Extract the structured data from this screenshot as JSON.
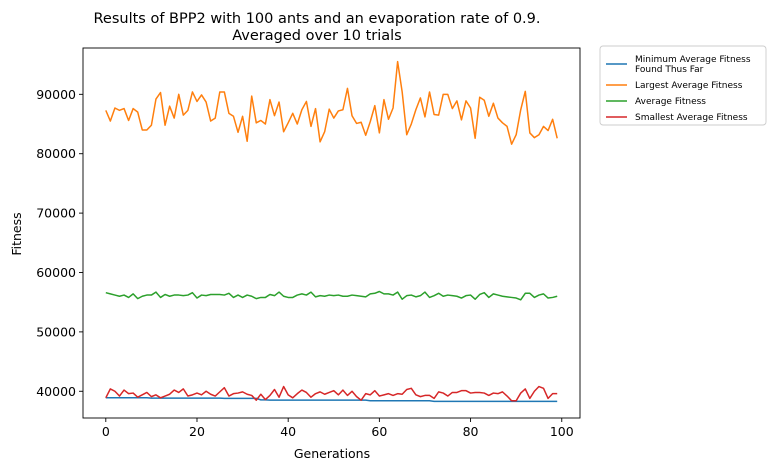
{
  "chart_data": {
    "type": "line",
    "title": [
      "Results of BPP2 with 100 ants and an evaporation rate of 0.9.",
      "Averaged over 10 trials"
    ],
    "xlabel": "Generations",
    "ylabel": "Fitness",
    "xlim": [
      -5,
      104
    ],
    "ylim": [
      35500,
      97800
    ],
    "xticks": [
      0,
      20,
      40,
      60,
      80,
      100
    ],
    "yticks": [
      40000,
      50000,
      60000,
      70000,
      80000,
      90000
    ],
    "ytick_labels": [
      "40000",
      "50000",
      "60000",
      "70000",
      "80000",
      "90000"
    ],
    "grid": false,
    "legend": "outside-top-right",
    "series": [
      {
        "name": [
          "Minimum Average Fitness",
          "Found Thus Far"
        ],
        "color": "#1f77b4",
        "values": [
          38900,
          38900,
          38900,
          38900,
          38900,
          38900,
          38900,
          38900,
          38900,
          38900,
          38850,
          38850,
          38850,
          38850,
          38850,
          38850,
          38850,
          38850,
          38850,
          38850,
          38850,
          38850,
          38850,
          38850,
          38850,
          38850,
          38800,
          38800,
          38800,
          38800,
          38800,
          38800,
          38800,
          38800,
          38550,
          38550,
          38500,
          38500,
          38500,
          38500,
          38500,
          38500,
          38500,
          38500,
          38500,
          38500,
          38500,
          38500,
          38500,
          38500,
          38500,
          38500,
          38500,
          38500,
          38500,
          38500,
          38500,
          38500,
          38400,
          38400,
          38400,
          38400,
          38400,
          38400,
          38400,
          38400,
          38400,
          38400,
          38400,
          38400,
          38400,
          38400,
          38300,
          38300,
          38300,
          38300,
          38300,
          38300,
          38300,
          38300,
          38300,
          38300,
          38300,
          38300,
          38300,
          38300,
          38300,
          38300,
          38300,
          38300,
          38300,
          38300,
          38300,
          38300,
          38300,
          38300,
          38300,
          38300,
          38300,
          38300
        ]
      },
      {
        "name": [
          "Largest Average Fitness"
        ],
        "color": "#ff7f0e",
        "values": [
          87300,
          85500,
          87700,
          87300,
          87600,
          85600,
          87600,
          87000,
          84000,
          84000,
          84800,
          89200,
          90300,
          84800,
          88000,
          86000,
          90000,
          86500,
          87300,
          90400,
          88800,
          89900,
          88700,
          85500,
          86000,
          90400,
          90400,
          86800,
          86300,
          83600,
          86300,
          82100,
          89700,
          85200,
          85600,
          85000,
          89100,
          86400,
          88700,
          83700,
          85200,
          86800,
          85000,
          87400,
          88800,
          84600,
          87600,
          82000,
          83700,
          87500,
          86000,
          87200,
          87400,
          91000,
          86400,
          85100,
          85300,
          83100,
          85400,
          88100,
          83500,
          89100,
          85800,
          87700,
          95500,
          90400,
          83200,
          85000,
          87400,
          89400,
          86200,
          90400,
          86600,
          86500,
          90000,
          90000,
          87600,
          88900,
          85700,
          88900,
          87700,
          82600,
          89500,
          89000,
          86300,
          88500,
          86000,
          85200,
          84600,
          81600,
          83200,
          87400,
          90500,
          83500,
          82700,
          83200,
          84600,
          83900,
          85800,
          82600
        ]
      },
      {
        "name": [
          "Average Fitness"
        ],
        "color": "#2ca02c",
        "values": [
          56600,
          56400,
          56200,
          56000,
          56200,
          55800,
          56400,
          55600,
          56000,
          56200,
          56200,
          56700,
          55800,
          56300,
          56000,
          56200,
          56200,
          56100,
          56200,
          56600,
          55700,
          56200,
          56100,
          56300,
          56300,
          56300,
          56200,
          56500,
          55800,
          56200,
          55800,
          56200,
          56000,
          55600,
          55800,
          55800,
          56300,
          56100,
          56700,
          56000,
          55800,
          55800,
          56200,
          56400,
          56200,
          56700,
          55900,
          56100,
          56000,
          56200,
          56100,
          56200,
          56000,
          56000,
          56200,
          56100,
          56000,
          55900,
          56400,
          56500,
          56800,
          56400,
          56400,
          56200,
          56700,
          55500,
          56100,
          56200,
          55900,
          56100,
          56700,
          55800,
          56100,
          56500,
          56000,
          56200,
          56100,
          56000,
          55700,
          56100,
          56200,
          55500,
          56300,
          56600,
          55800,
          56400,
          56200,
          56000,
          55900,
          55800,
          55700,
          55400,
          56500,
          56500,
          55800,
          56200,
          56400,
          55700,
          55800,
          56000
        ]
      },
      {
        "name": [
          "Smallest Average Fitness"
        ],
        "color": "#d62728",
        "values": [
          38900,
          40400,
          40000,
          39200,
          40200,
          39600,
          39700,
          39000,
          39400,
          39800,
          39100,
          39400,
          38900,
          39200,
          39500,
          40200,
          39800,
          40400,
          39200,
          39400,
          39700,
          39400,
          40000,
          39500,
          39200,
          39900,
          40600,
          39200,
          39600,
          39700,
          39900,
          39500,
          39300,
          38500,
          39500,
          38600,
          39300,
          40300,
          39000,
          40800,
          39400,
          38900,
          39600,
          40200,
          39800,
          39000,
          39600,
          39900,
          39500,
          39800,
          40100,
          39400,
          40200,
          39300,
          40000,
          39100,
          38500,
          39600,
          39400,
          40100,
          39200,
          39400,
          39600,
          39300,
          39600,
          39500,
          40300,
          40500,
          39400,
          39100,
          39300,
          39300,
          38800,
          39900,
          39700,
          39200,
          39800,
          39800,
          40100,
          40100,
          39700,
          39800,
          39800,
          39700,
          39300,
          39700,
          39600,
          39900,
          39200,
          38400,
          38400,
          39700,
          40400,
          38800,
          40000,
          40800,
          40500,
          38800,
          39600,
          39600
        ]
      }
    ]
  }
}
